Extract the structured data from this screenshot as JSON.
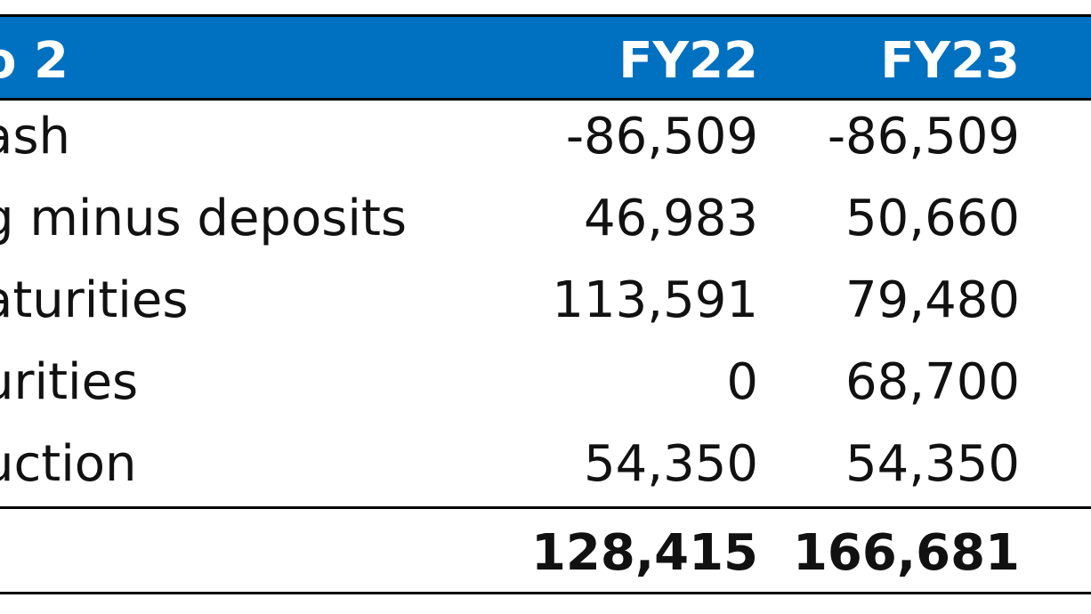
{
  "table": {
    "header": {
      "label": "o 2",
      "fy22": "FY22",
      "fy23": "FY23"
    },
    "rows": [
      {
        "label": "ash",
        "fy22": "-86,509",
        "fy23": "-86,509"
      },
      {
        "label": "g minus deposits",
        "fy22": "46,983",
        "fy23": "50,660"
      },
      {
        "label": "aturities",
        "fy22": "113,591",
        "fy23": "79,480"
      },
      {
        "label": "urities",
        "fy22": "0",
        "fy23": "68,700"
      },
      {
        "label": "uction",
        "fy22": "54,350",
        "fy23": "54,350"
      }
    ],
    "total": {
      "label": "",
      "fy22": "128,415",
      "fy23": "166,681"
    },
    "colors": {
      "header_bg": "#0070c0",
      "header_text": "#ffffff",
      "border": "#000000"
    }
  }
}
